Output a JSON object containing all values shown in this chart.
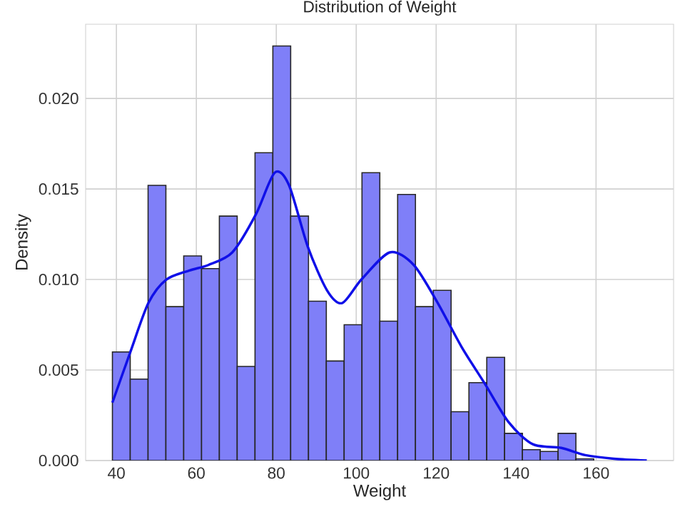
{
  "chart_data": {
    "type": "histogram",
    "title": "Distribution of Weight",
    "xlabel": "Weight",
    "ylabel": "Density",
    "xlim": [
      32.3,
      179.4
    ],
    "ylim": [
      0,
      0.0241
    ],
    "xticks": [
      40,
      60,
      80,
      100,
      120,
      140,
      160
    ],
    "yticks": [
      {
        "value": 0,
        "label": "0.000"
      },
      {
        "value": 0.005,
        "label": "0.005"
      },
      {
        "value": 0.01,
        "label": "0.010"
      },
      {
        "value": 0.015,
        "label": "0.015"
      },
      {
        "value": 0.02,
        "label": "0.020"
      }
    ],
    "grid": true,
    "series": [
      {
        "color": "#7f7ff8",
        "bins": [
          39,
          43.46,
          47.92,
          52.38,
          56.84,
          61.3,
          65.76,
          70.22,
          74.68,
          79.14,
          83.6,
          88.06,
          92.52,
          96.98,
          101.44,
          105.9,
          110.36,
          114.82,
          119.28,
          123.74,
          128.2,
          132.66,
          137.12,
          141.58,
          146.04,
          150.5,
          154.96,
          159.42
        ],
        "values": [
          0.006,
          0.0045,
          0.0152,
          0.0085,
          0.0113,
          0.0106,
          0.0135,
          0.0052,
          0.017,
          0.0229,
          0.0135,
          0.0088,
          0.0055,
          0.0075,
          0.0159,
          0.0077,
          0.0147,
          0.0085,
          0.0094,
          0.0027,
          0.0043,
          0.0057,
          0.0015,
          0.0006,
          0.0005,
          0.0015,
          0.0001
        ]
      },
      {
        "type": "line",
        "color": "#1010e8",
        "x": [
          39.0,
          43.5,
          48,
          52.5,
          58.3,
          63,
          69,
          74.9,
          79.6,
          83.2,
          87.9,
          92.7,
          96.5,
          101.3,
          108.4,
          114.4,
          120.4,
          126.3,
          132.3,
          138.2,
          144.2,
          151.3,
          157.3,
          164.5,
          172.7
        ],
        "values": [
          0.0032,
          0.006,
          0.0087,
          0.01,
          0.0105,
          0.0108,
          0.0115,
          0.0136,
          0.0159,
          0.0152,
          0.0118,
          0.0094,
          0.0087,
          0.01,
          0.0115,
          0.0108,
          0.0087,
          0.0063,
          0.0042,
          0.0021,
          0.0009,
          0.0007,
          0.0003,
          0.0001,
          0.0
        ]
      }
    ]
  }
}
